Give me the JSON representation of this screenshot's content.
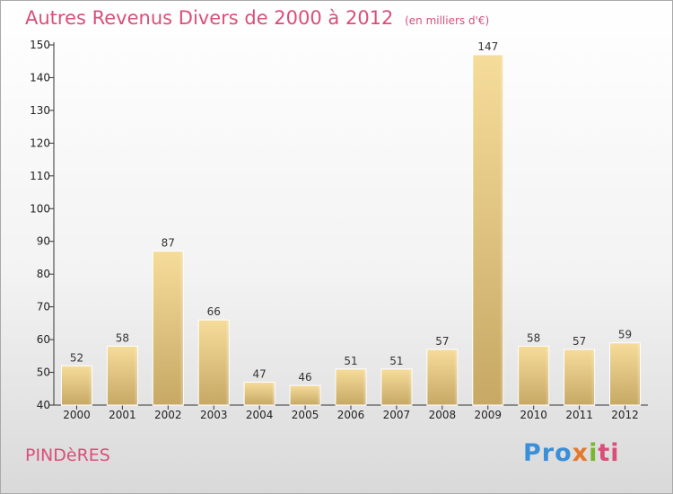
{
  "header": {
    "title": "Autres Revenus Divers de 2000 à 2012",
    "unit": "(en milliers d'€)"
  },
  "footer": {
    "place": "PINDèRES",
    "logo_parts": [
      "Pro",
      "x",
      "i",
      "ti"
    ]
  },
  "colors": {
    "title": "#d94f7a",
    "bar_light": "#f6dc9a",
    "bar_dark": "#c7a865"
  },
  "chart_data": {
    "type": "bar",
    "title": "Autres Revenus Divers de 2000 à 2012",
    "subtitle": "(en milliers d'€)",
    "xlabel": "",
    "ylabel": "",
    "categories": [
      "2000",
      "2001",
      "2002",
      "2003",
      "2004",
      "2005",
      "2006",
      "2007",
      "2008",
      "2009",
      "2010",
      "2011",
      "2012"
    ],
    "values": [
      52,
      58,
      87,
      66,
      47,
      46,
      51,
      51,
      57,
      147,
      58,
      57,
      59
    ],
    "ylim": [
      40,
      150
    ],
    "yticks": [
      40,
      50,
      60,
      70,
      80,
      90,
      100,
      110,
      120,
      130,
      140,
      150
    ],
    "grid": false,
    "data_labels": true
  }
}
